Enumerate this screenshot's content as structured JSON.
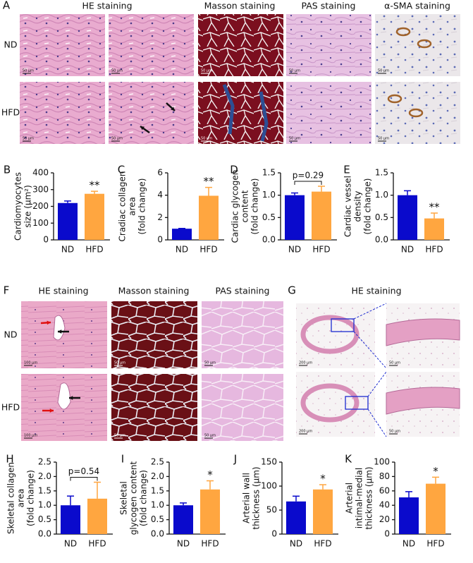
{
  "panel_a": {
    "label": "A",
    "columns": [
      "HE staining",
      "Masson staining",
      "PAS staining",
      "α-SMA staining"
    ],
    "rows": [
      "ND",
      "HFD"
    ],
    "scale_bars": [
      [
        "50 μm",
        "50 μm",
        "50 μm",
        "50 μm",
        "50 μm"
      ],
      [
        "50 μm",
        "50 μm",
        "50 μm",
        "50 μm",
        "50 μm"
      ]
    ]
  },
  "panel_f": {
    "label": "F",
    "columns": [
      "HE staining",
      "Masson staining",
      "PAS staining"
    ],
    "rows": [
      "ND",
      "HFD"
    ],
    "scale_bars": [
      [
        "100 μm",
        "50 μm",
        "50 μm"
      ],
      [
        "100 μm",
        "50 μm",
        "50 μm"
      ]
    ]
  },
  "panel_g": {
    "label": "G",
    "title": "HE staining",
    "scale_bars": [
      [
        "200 μm",
        "50 μm"
      ],
      [
        "200 μm",
        "50 μm"
      ]
    ]
  },
  "chart_data": [
    {
      "type": "bar",
      "panel": "B",
      "ylabel": [
        "Cardiomyocytes",
        "size (μm²)"
      ],
      "categories": [
        "ND",
        "HFD"
      ],
      "values": [
        220,
        275
      ],
      "errors": [
        12,
        15
      ],
      "colors": [
        "#0a0acc",
        "#ffa640"
      ],
      "ylim": [
        0,
        400
      ],
      "yticks": [
        0,
        100,
        200,
        300,
        400
      ],
      "annotation": "**"
    },
    {
      "type": "bar",
      "panel": "C",
      "ylabel": [
        "Cradiac collagen",
        "area",
        "(fold change)"
      ],
      "categories": [
        "ND",
        "HFD"
      ],
      "values": [
        1.0,
        3.95
      ],
      "errors": [
        0.03,
        0.75
      ],
      "colors": [
        "#0a0acc",
        "#ffa640"
      ],
      "ylim": [
        0,
        6
      ],
      "yticks": [
        0,
        2,
        4,
        6
      ],
      "annotation": "**"
    },
    {
      "type": "bar",
      "panel": "D",
      "ylabel": [
        "Cardiac glycogen",
        "content",
        "(fold change)"
      ],
      "categories": [
        "ND",
        "HFD"
      ],
      "values": [
        1.0,
        1.08
      ],
      "errors": [
        0.05,
        0.12
      ],
      "colors": [
        "#0a0acc",
        "#ffa640"
      ],
      "ylim": [
        0,
        1.5
      ],
      "yticks": [
        {
          "value": 0,
          "label": "0.0"
        },
        0.5,
        {
          "value": 1,
          "label": "1.0"
        },
        1.5
      ],
      "pvalue": "p=0.29"
    },
    {
      "type": "bar",
      "panel": "E",
      "ylabel": [
        "Cardiac vessel",
        "density",
        "(fold change)"
      ],
      "categories": [
        "ND",
        "HFD"
      ],
      "values": [
        1.0,
        0.48
      ],
      "errors": [
        0.1,
        0.12
      ],
      "colors": [
        "#0a0acc",
        "#ffa640"
      ],
      "ylim": [
        0,
        1.5
      ],
      "yticks": [
        {
          "value": 0,
          "label": "0.0"
        },
        0.5,
        {
          "value": 1,
          "label": "1.0"
        },
        1.5
      ],
      "annotation": "**"
    },
    {
      "type": "bar",
      "panel": "H",
      "ylabel": [
        "Skeletal collagen",
        "area",
        "(fold change)"
      ],
      "categories": [
        "ND",
        "HFD"
      ],
      "values": [
        1.0,
        1.23
      ],
      "errors": [
        0.32,
        0.57
      ],
      "colors": [
        "#0a0acc",
        "#ffa640"
      ],
      "ylim": [
        0,
        2.5
      ],
      "yticks": [
        {
          "value": 0,
          "label": "0.0"
        },
        0.5,
        {
          "value": 1,
          "label": "1.0"
        },
        1.5,
        {
          "value": 2,
          "label": "2.0"
        },
        2.5
      ],
      "pvalue": "p=0.54"
    },
    {
      "type": "bar",
      "panel": "I",
      "ylabel": [
        "Skeletal",
        "glycogen content",
        "(fold change)"
      ],
      "categories": [
        "ND",
        "HFD"
      ],
      "values": [
        1.0,
        1.55
      ],
      "errors": [
        0.08,
        0.3
      ],
      "colors": [
        "#0a0acc",
        "#ffa640"
      ],
      "ylim": [
        0,
        2.5
      ],
      "yticks": [
        {
          "value": 0,
          "label": "0.0"
        },
        0.5,
        {
          "value": 1,
          "label": "1.0"
        },
        1.5,
        {
          "value": 2,
          "label": "2.0"
        },
        2.5
      ],
      "annotation": "*"
    },
    {
      "type": "bar",
      "panel": "J",
      "ylabel": [
        "Arterial wall",
        "thickness (μm)"
      ],
      "categories": [
        "ND",
        "HFD"
      ],
      "values": [
        68,
        93
      ],
      "errors": [
        11,
        10
      ],
      "colors": [
        "#0a0acc",
        "#ffa640"
      ],
      "ylim": [
        0,
        150
      ],
      "yticks": [
        0,
        50,
        100,
        150
      ],
      "annotation": "*"
    },
    {
      "type": "bar",
      "panel": "K",
      "ylabel": [
        "Arterial",
        "intimal-medial",
        "thickness (μm)"
      ],
      "categories": [
        "ND",
        "HFD"
      ],
      "values": [
        51,
        70
      ],
      "errors": [
        8,
        9
      ],
      "colors": [
        "#0a0acc",
        "#ffa640"
      ],
      "ylim": [
        0,
        100
      ],
      "yticks": [
        0,
        20,
        40,
        60,
        80,
        100
      ],
      "annotation": "*"
    }
  ]
}
